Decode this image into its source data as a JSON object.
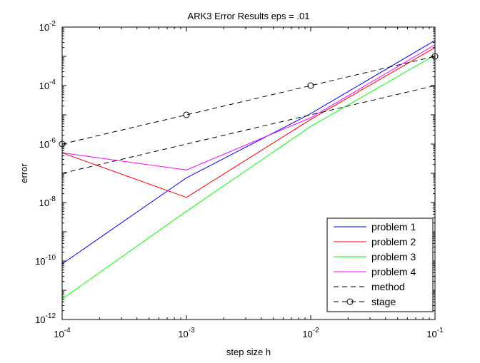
{
  "chart_data": {
    "type": "line",
    "title": "ARK3 Error Results eps = .01",
    "xlabel": "step size h",
    "ylabel": "error",
    "xscale": "log",
    "yscale": "log",
    "xlim": [
      0.0001,
      0.1
    ],
    "ylim": [
      1e-12,
      0.01
    ],
    "x_ticks": [
      {
        "value": 0.0001,
        "base": "10",
        "exp": "-4"
      },
      {
        "value": 0.001,
        "base": "10",
        "exp": "-3"
      },
      {
        "value": 0.01,
        "base": "10",
        "exp": "-2"
      },
      {
        "value": 0.1,
        "base": "10",
        "exp": "-1"
      }
    ],
    "y_ticks": [
      {
        "value": 1e-12,
        "base": "10",
        "exp": "-12"
      },
      {
        "value": 1e-10,
        "base": "10",
        "exp": "-10"
      },
      {
        "value": 1e-08,
        "base": "10",
        "exp": "-8"
      },
      {
        "value": 1e-06,
        "base": "10",
        "exp": "-6"
      },
      {
        "value": 0.0001,
        "base": "10",
        "exp": "-4"
      },
      {
        "value": 0.01,
        "base": "10",
        "exp": "-2"
      }
    ],
    "grid": false,
    "legend_position": "bottom-right",
    "x": [
      0.0001,
      0.001,
      0.01,
      0.1
    ],
    "series": [
      {
        "name": "problem 1",
        "color": "#0000ff",
        "dash": "solid",
        "marker": "none",
        "values": [
          8e-11,
          7e-08,
          1.1e-05,
          0.0035
        ]
      },
      {
        "name": "problem 2",
        "color": "#ff0000",
        "dash": "solid",
        "marker": "none",
        "values": [
          5e-07,
          1.5e-08,
          7e-06,
          0.002
        ]
      },
      {
        "name": "problem 3",
        "color": "#00ff00",
        "dash": "solid",
        "marker": "none",
        "values": [
          5e-12,
          5e-09,
          4e-06,
          0.0011
        ]
      },
      {
        "name": "problem 4",
        "color": "#ff00ff",
        "dash": "solid",
        "marker": "none",
        "values": [
          5e-07,
          1.3e-07,
          8e-06,
          0.0025
        ]
      },
      {
        "name": "method",
        "color": "#000000",
        "dash": "dashed",
        "marker": "none",
        "values": [
          1e-07,
          1e-06,
          1e-05,
          0.0001
        ]
      },
      {
        "name": "stage",
        "color": "#000000",
        "dash": "dashed",
        "marker": "circle",
        "values": [
          1e-06,
          1e-05,
          0.0001,
          0.001
        ]
      }
    ]
  }
}
